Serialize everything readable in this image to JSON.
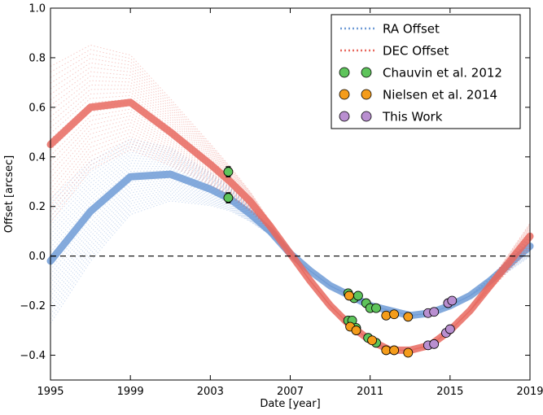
{
  "chart_data": {
    "type": "scatter",
    "xlabel": "Date [year]",
    "ylabel": "Offset [arcsec]",
    "xlim": [
      1995,
      2019
    ],
    "ylim": [
      -0.5,
      1.0
    ],
    "x_ticks": [
      1995,
      1999,
      2003,
      2007,
      2011,
      2015,
      2019
    ],
    "x_tick_labels": [
      "1995",
      "1999",
      "2003",
      "2007",
      "2011",
      "2015",
      "2019"
    ],
    "y_ticks": [
      -0.4,
      -0.2,
      0.0,
      0.2,
      0.4,
      0.6,
      0.8,
      1.0
    ],
    "y_tick_labels": [
      "−0.4",
      "−0.2",
      "0.0",
      "0.2",
      "0.4",
      "0.6",
      "0.8",
      "1.0"
    ],
    "zero_line": true,
    "legend_position": "top-right",
    "series": [
      {
        "name": "RA Offset",
        "kind": "model-tracks",
        "color": "#6f9bd6",
        "points": [
          [
            1995.0,
            -0.02
          ],
          [
            1997.0,
            0.18
          ],
          [
            1999.0,
            0.32
          ],
          [
            2001.0,
            0.33
          ],
          [
            2003.0,
            0.27
          ],
          [
            2004.0,
            0.23
          ],
          [
            2005.0,
            0.17
          ],
          [
            2006.0,
            0.1
          ],
          [
            2007.0,
            0.01
          ],
          [
            2008.0,
            -0.06
          ],
          [
            2009.0,
            -0.12
          ],
          [
            2010.0,
            -0.16
          ],
          [
            2011.0,
            -0.2
          ],
          [
            2012.0,
            -0.22
          ],
          [
            2013.0,
            -0.24
          ],
          [
            2014.0,
            -0.23
          ],
          [
            2015.0,
            -0.2
          ],
          [
            2016.0,
            -0.16
          ],
          [
            2017.0,
            -0.1
          ],
          [
            2018.0,
            -0.03
          ],
          [
            2019.0,
            0.04
          ]
        ]
      },
      {
        "name": "DEC Offset",
        "kind": "model-tracks",
        "color": "#e8695f",
        "points": [
          [
            1995.0,
            0.45
          ],
          [
            1997.0,
            0.6
          ],
          [
            1999.0,
            0.62
          ],
          [
            2001.0,
            0.5
          ],
          [
            2003.0,
            0.37
          ],
          [
            2004.0,
            0.3
          ],
          [
            2005.0,
            0.22
          ],
          [
            2006.0,
            0.12
          ],
          [
            2007.0,
            0.01
          ],
          [
            2008.0,
            -0.1
          ],
          [
            2009.0,
            -0.2
          ],
          [
            2010.0,
            -0.28
          ],
          [
            2011.0,
            -0.34
          ],
          [
            2012.0,
            -0.38
          ],
          [
            2013.0,
            -0.38
          ],
          [
            2014.0,
            -0.36
          ],
          [
            2015.0,
            -0.3
          ],
          [
            2016.0,
            -0.22
          ],
          [
            2017.0,
            -0.12
          ],
          [
            2018.0,
            -0.02
          ],
          [
            2019.0,
            0.08
          ]
        ]
      },
      {
        "name": "Chauvin et al. 2012",
        "kind": "data",
        "color": "#5ec45b",
        "points": [
          [
            2003.9,
            0.235
          ],
          [
            2003.9,
            0.34
          ],
          [
            2009.9,
            -0.15
          ],
          [
            2010.2,
            -0.17
          ],
          [
            2010.4,
            -0.16
          ],
          [
            2010.8,
            -0.19
          ],
          [
            2011.0,
            -0.21
          ],
          [
            2011.3,
            -0.21
          ],
          [
            2009.9,
            -0.26
          ],
          [
            2010.1,
            -0.26
          ],
          [
            2010.3,
            -0.29
          ],
          [
            2010.9,
            -0.33
          ],
          [
            2011.3,
            -0.35
          ]
        ],
        "errors": [
          0.02,
          0.02,
          0,
          0,
          0,
          0,
          0,
          0,
          0,
          0,
          0,
          0,
          0
        ]
      },
      {
        "name": "Nielsen et al. 2014",
        "kind": "data",
        "color": "#f49c1b",
        "points": [
          [
            2009.95,
            -0.16
          ],
          [
            2011.8,
            -0.24
          ],
          [
            2012.2,
            -0.235
          ],
          [
            2012.9,
            -0.245
          ],
          [
            2010.0,
            -0.285
          ],
          [
            2010.3,
            -0.3
          ],
          [
            2011.1,
            -0.34
          ],
          [
            2011.8,
            -0.38
          ],
          [
            2012.2,
            -0.38
          ],
          [
            2012.9,
            -0.39
          ]
        ]
      },
      {
        "name": "This Work",
        "kind": "data",
        "color": "#b98fd0",
        "points": [
          [
            2013.9,
            -0.23
          ],
          [
            2014.2,
            -0.225
          ],
          [
            2014.9,
            -0.19
          ],
          [
            2015.1,
            -0.18
          ],
          [
            2013.9,
            -0.36
          ],
          [
            2014.2,
            -0.355
          ],
          [
            2014.8,
            -0.31
          ],
          [
            2015.0,
            -0.295
          ]
        ]
      }
    ]
  }
}
